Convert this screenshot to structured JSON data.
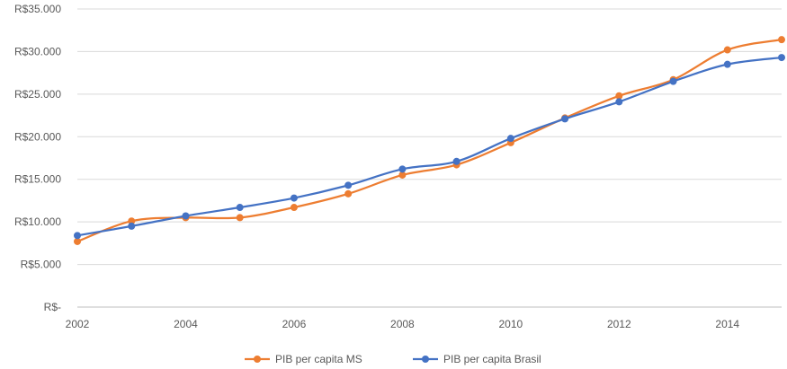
{
  "chart_data": {
    "type": "line",
    "title": "",
    "xlabel": "",
    "ylabel": "",
    "x": [
      2002,
      2003,
      2004,
      2005,
      2006,
      2007,
      2008,
      2009,
      2010,
      2011,
      2012,
      2013,
      2014,
      2015
    ],
    "x_tick_labels": [
      "2002",
      "2004",
      "2006",
      "2008",
      "2010",
      "2012",
      "2014"
    ],
    "x_ticks": [
      2002,
      2004,
      2006,
      2008,
      2010,
      2012,
      2014
    ],
    "xlim": [
      2002,
      2015
    ],
    "ylim": [
      0,
      35000
    ],
    "y_ticks": [
      0,
      5000,
      10000,
      15000,
      20000,
      25000,
      30000,
      35000
    ],
    "y_tick_labels": [
      "R$-",
      "R$5.000",
      "R$10.000",
      "R$15.000",
      "R$20.000",
      "R$25.000",
      "R$30.000",
      "R$35.000"
    ],
    "grid": "horizontal",
    "legend_position": "bottom",
    "smooth": true,
    "series": [
      {
        "name": "PIB per capita MS",
        "color": "#ED7D31",
        "values": [
          7700,
          10100,
          10500,
          10500,
          11700,
          13300,
          15500,
          16700,
          19300,
          22200,
          24800,
          26700,
          30200,
          31400
        ]
      },
      {
        "name": "PIB per capita Brasil",
        "color": "#4472C4",
        "values": [
          8400,
          9500,
          10700,
          11700,
          12800,
          14300,
          16200,
          17100,
          19800,
          22100,
          24100,
          26500,
          28500,
          29300
        ]
      }
    ]
  }
}
